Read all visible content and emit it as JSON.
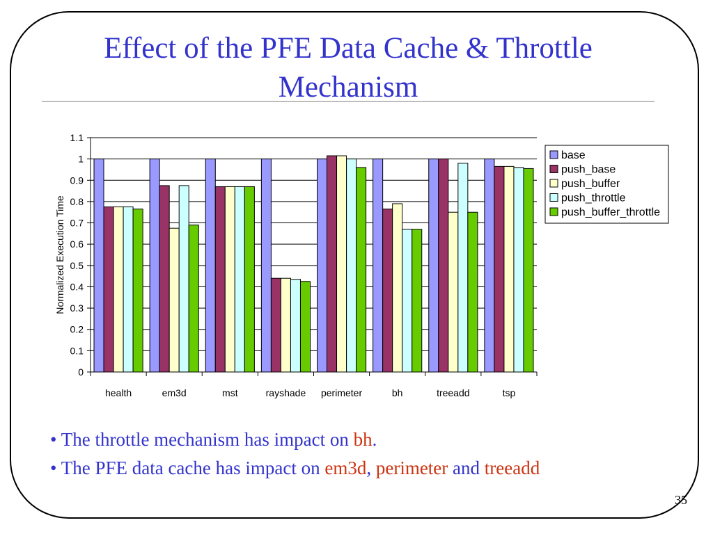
{
  "slide": {
    "title": "Effect of the PFE Data Cache & Throttle Mechanism",
    "page_number": "35",
    "bullets": [
      {
        "marker": "•",
        "text": "The throttle mechanism has impact on ",
        "hl1": "bh",
        "tail": "."
      },
      {
        "marker": "•",
        "text": "The PFE data cache has impact on ",
        "hl1": "em3d",
        "sep1": ", ",
        "hl2": "perimeter",
        "sep2": " and ",
        "hl3": "treeadd"
      }
    ],
    "colors": {
      "title": "#3333cc",
      "highlight": "#cc3311"
    }
  },
  "chart_data": {
    "type": "bar",
    "title": "",
    "xlabel": "",
    "ylabel": "Normalized Execution Time",
    "ylim": [
      0,
      1.1
    ],
    "yticks": [
      "0",
      "0.1",
      "0.2",
      "0.3",
      "0.4",
      "0.5",
      "0.6",
      "0.7",
      "0.8",
      "0.9",
      "1",
      "1.1"
    ],
    "grid": true,
    "legend_position": "right",
    "categories": [
      "health",
      "em3d",
      "mst",
      "rayshade",
      "perimeter",
      "bh",
      "treeadd",
      "tsp"
    ],
    "series": [
      {
        "name": "base",
        "color": "#9999ff",
        "values": [
          1.0,
          1.0,
          1.0,
          1.0,
          1.0,
          1.0,
          1.0,
          1.0
        ]
      },
      {
        "name": "push_base",
        "color": "#993366",
        "values": [
          0.775,
          0.875,
          0.87,
          0.44,
          1.015,
          0.765,
          1.0,
          0.965
        ]
      },
      {
        "name": "push_buffer",
        "color": "#ffffcc",
        "values": [
          0.775,
          0.675,
          0.87,
          0.44,
          1.015,
          0.79,
          0.75,
          0.965
        ]
      },
      {
        "name": "push_throttle",
        "color": "#ccffff",
        "values": [
          0.775,
          0.875,
          0.87,
          0.435,
          1.0,
          0.67,
          0.98,
          0.96
        ]
      },
      {
        "name": "push_buffer_throttle",
        "color": "#66cc00",
        "values": [
          0.765,
          0.69,
          0.87,
          0.425,
          0.96,
          0.67,
          0.75,
          0.955
        ]
      }
    ]
  }
}
